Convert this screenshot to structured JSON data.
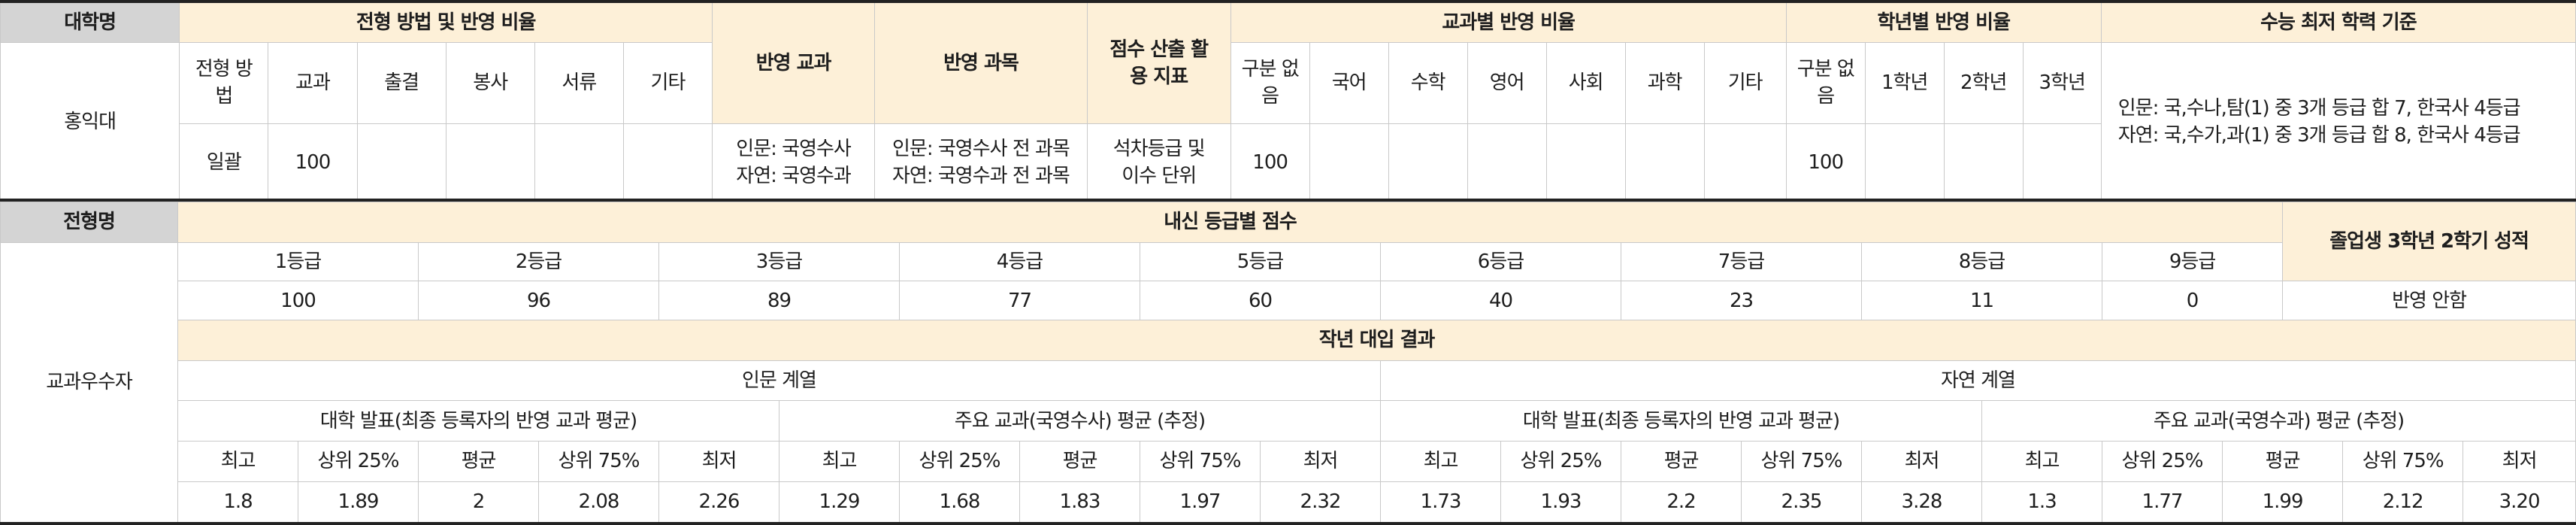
{
  "top": {
    "headers": {
      "university": "대학명",
      "method_ratio": "전형 방법 및 반영 비율",
      "subjects_reflected": "반영 교과",
      "courses_reflected": "반영 과목",
      "score_index": "점수 산출 활용 지표",
      "subject_ratio": "교과별 반영 비율",
      "grade_ratio": "학년별 반영 비율",
      "csat_minimum": "수능 최저 학력 기준"
    },
    "method_cols": [
      "전형 방법",
      "교과",
      "출결",
      "봉사",
      "서류",
      "기타"
    ],
    "subject_cols": [
      "구분 없음",
      "국어",
      "수학",
      "영어",
      "사회",
      "과학",
      "기타"
    ],
    "grade_cols": [
      "구분 없음",
      "1학년",
      "2학년",
      "3학년"
    ],
    "university": "홍익대",
    "method_values": [
      "일괄",
      "100",
      "",
      "",
      "",
      ""
    ],
    "subjects_reflected": [
      "인문: 국영수사",
      "자연: 국영수과"
    ],
    "courses_reflected": [
      "인문: 국영수사 전 과목",
      "자연: 국영수과 전 과목"
    ],
    "score_index": [
      "석차등급 및",
      "이수 단위"
    ],
    "subject_values": [
      "100",
      "",
      "",
      "",
      "",
      "",
      ""
    ],
    "grade_values": [
      "100",
      "",
      "",
      ""
    ],
    "csat_minimum": [
      "인문: 국,수나,탐(1) 중 3개 등급 합 7, 한국사 4등급",
      "자연: 국,수가,과(1) 중 3개 등급 합 8, 한국사 4등급"
    ]
  },
  "bottom": {
    "track_header": "전형명",
    "track_name": "교과우수자",
    "grade_score_header": "내신 등급별 점수",
    "grades": [
      "1등급",
      "2등급",
      "3등급",
      "4등급",
      "5등급",
      "6등급",
      "7등급",
      "8등급",
      "9등급"
    ],
    "scores": [
      "100",
      "96",
      "89",
      "77",
      "60",
      "40",
      "23",
      "11",
      "0"
    ],
    "graduate_header": "졸업생 3학년 2학기 성적",
    "graduate_value": "반영 안함",
    "last_year_header": "작년 대입 결과",
    "tracks": [
      "인문 계열",
      "자연 계열"
    ],
    "groups": [
      "대학 발표(최종 등록자의 반영 교과 평균)",
      "주요 교과(국영수사) 평균 (추정)",
      "대학 발표(최종 등록자의 반영 교과 평균)",
      "주요 교과(국영수과) 평균 (추정)"
    ],
    "stat_cols": [
      "최고",
      "상위 25%",
      "평균",
      "상위 75%",
      "최저"
    ],
    "results": [
      [
        "1.8",
        "1.89",
        "2",
        "2.08",
        "2.26"
      ],
      [
        "1.29",
        "1.68",
        "1.83",
        "1.97",
        "2.32"
      ],
      [
        "1.73",
        "1.93",
        "2.2",
        "2.35",
        "3.28"
      ],
      [
        "1.3",
        "1.77",
        "1.99",
        "2.12",
        "3.20"
      ]
    ]
  }
}
